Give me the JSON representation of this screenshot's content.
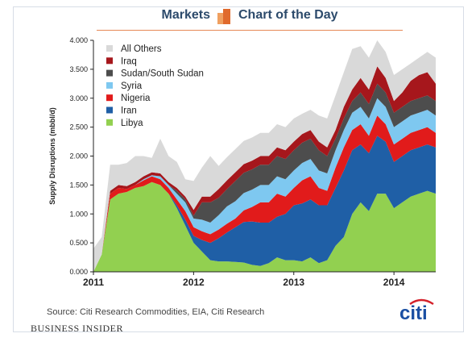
{
  "header": {
    "left_title": "Markets",
    "right_title": "Chart of the Day"
  },
  "footer": {
    "source": "Source: Citi Research Commodities, EIA, Citi Research",
    "publisher": "Business Insider",
    "brand": "citi"
  },
  "colors": {
    "header_text": "#2c4a6b",
    "accent": "#e06a2c",
    "citi_blue": "#1b4fa3",
    "citi_red": "#d4202a"
  },
  "chart_data": {
    "type": "area",
    "stacked": true,
    "title": "",
    "xlabel": "",
    "ylabel": "Supply Disruptions (mbbl/d)",
    "ylim": [
      0,
      4.0
    ],
    "xlim": [
      2011.0,
      2014.417
    ],
    "y_ticks": [
      "0.000",
      "0.500",
      "1.000",
      "1.500",
      "2.000",
      "2.500",
      "3.000",
      "3.500",
      "4.000"
    ],
    "x_ticks": [
      {
        "value": 2011,
        "label": "2011"
      },
      {
        "value": 2012,
        "label": "2012"
      },
      {
        "value": 2013,
        "label": "2013"
      },
      {
        "value": 2014,
        "label": "2014"
      }
    ],
    "grid": false,
    "legend_position": "top-left",
    "legend_order": [
      "All Others",
      "Iraq",
      "Sudan/South Sudan",
      "Syria",
      "Nigeria",
      "Iran",
      "Libya"
    ],
    "x": [
      2011.0,
      2011.083,
      2011.167,
      2011.25,
      2011.333,
      2011.417,
      2011.5,
      2011.583,
      2011.667,
      2011.75,
      2011.833,
      2011.917,
      2012.0,
      2012.083,
      2012.167,
      2012.25,
      2012.333,
      2012.417,
      2012.5,
      2012.583,
      2012.667,
      2012.75,
      2012.833,
      2012.917,
      2013.0,
      2013.083,
      2013.167,
      2013.25,
      2013.333,
      2013.417,
      2013.5,
      2013.583,
      2013.667,
      2013.75,
      2013.833,
      2013.917,
      2014.0,
      2014.083,
      2014.167,
      2014.25,
      2014.333,
      2014.417
    ],
    "series": [
      {
        "name": "Libya",
        "color": "#92d050",
        "values": [
          0.0,
          0.3,
          1.25,
          1.35,
          1.38,
          1.45,
          1.48,
          1.55,
          1.5,
          1.35,
          1.1,
          0.8,
          0.5,
          0.35,
          0.2,
          0.18,
          0.18,
          0.17,
          0.16,
          0.12,
          0.1,
          0.15,
          0.25,
          0.2,
          0.2,
          0.18,
          0.25,
          0.15,
          0.2,
          0.45,
          0.6,
          1.0,
          1.2,
          1.05,
          1.35,
          1.35,
          1.1,
          1.2,
          1.3,
          1.35,
          1.4,
          1.35
        ]
      },
      {
        "name": "Iran",
        "color": "#1f5fa6",
        "values": [
          0.0,
          0.0,
          0.0,
          0.0,
          0.0,
          0.0,
          0.0,
          0.0,
          0.0,
          0.0,
          0.05,
          0.1,
          0.12,
          0.2,
          0.3,
          0.4,
          0.5,
          0.6,
          0.7,
          0.75,
          0.75,
          0.7,
          0.7,
          0.8,
          0.95,
          1.0,
          1.0,
          1.0,
          0.95,
          1.0,
          1.15,
          1.1,
          1.0,
          1.0,
          1.0,
          0.9,
          0.8,
          0.8,
          0.8,
          0.8,
          0.8,
          0.8
        ]
      },
      {
        "name": "Nigeria",
        "color": "#e11b1b",
        "values": [
          0.0,
          0.0,
          0.1,
          0.1,
          0.05,
          0.05,
          0.1,
          0.1,
          0.1,
          0.1,
          0.1,
          0.15,
          0.15,
          0.15,
          0.15,
          0.15,
          0.15,
          0.15,
          0.2,
          0.25,
          0.35,
          0.35,
          0.4,
          0.3,
          0.3,
          0.4,
          0.4,
          0.3,
          0.25,
          0.35,
          0.4,
          0.35,
          0.35,
          0.3,
          0.35,
          0.3,
          0.3,
          0.3,
          0.3,
          0.3,
          0.3,
          0.25
        ]
      },
      {
        "name": "Syria",
        "color": "#7ec8f0",
        "values": [
          0.0,
          0.0,
          0.0,
          0.0,
          0.0,
          0.0,
          0.02,
          0.02,
          0.05,
          0.05,
          0.1,
          0.15,
          0.15,
          0.2,
          0.2,
          0.25,
          0.3,
          0.3,
          0.3,
          0.3,
          0.3,
          0.3,
          0.3,
          0.3,
          0.3,
          0.3,
          0.3,
          0.3,
          0.3,
          0.3,
          0.3,
          0.3,
          0.3,
          0.3,
          0.3,
          0.3,
          0.3,
          0.3,
          0.3,
          0.3,
          0.3,
          0.3
        ]
      },
      {
        "name": "Sudan/South Sudan",
        "color": "#4d4d4d",
        "values": [
          0.0,
          0.0,
          0.0,
          0.0,
          0.0,
          0.0,
          0.0,
          0.0,
          0.0,
          0.0,
          0.05,
          0.05,
          0.05,
          0.3,
          0.35,
          0.3,
          0.3,
          0.35,
          0.35,
          0.35,
          0.35,
          0.35,
          0.35,
          0.35,
          0.35,
          0.35,
          0.35,
          0.35,
          0.3,
          0.2,
          0.2,
          0.2,
          0.25,
          0.25,
          0.25,
          0.25,
          0.25,
          0.25,
          0.25,
          0.25,
          0.25,
          0.25
        ]
      },
      {
        "name": "Iraq",
        "color": "#a6171c",
        "values": [
          0.0,
          0.0,
          0.05,
          0.05,
          0.05,
          0.05,
          0.05,
          0.05,
          0.05,
          0.05,
          0.05,
          0.05,
          0.1,
          0.1,
          0.1,
          0.15,
          0.15,
          0.15,
          0.15,
          0.15,
          0.15,
          0.15,
          0.15,
          0.15,
          0.15,
          0.15,
          0.15,
          0.15,
          0.15,
          0.15,
          0.2,
          0.2,
          0.25,
          0.25,
          0.3,
          0.25,
          0.2,
          0.25,
          0.35,
          0.4,
          0.4,
          0.3
        ]
      },
      {
        "name": "All Others",
        "color": "#d9d9d9",
        "values": [
          0.4,
          0.3,
          0.45,
          0.35,
          0.4,
          0.45,
          0.35,
          0.25,
          0.6,
          0.45,
          0.45,
          0.3,
          0.5,
          0.5,
          0.7,
          0.4,
          0.4,
          0.4,
          0.4,
          0.4,
          0.4,
          0.4,
          0.4,
          0.4,
          0.4,
          0.35,
          0.35,
          0.45,
          0.5,
          0.6,
          0.6,
          0.7,
          0.55,
          0.55,
          0.45,
          0.45,
          0.45,
          0.4,
          0.3,
          0.3,
          0.35,
          0.45
        ]
      }
    ]
  }
}
